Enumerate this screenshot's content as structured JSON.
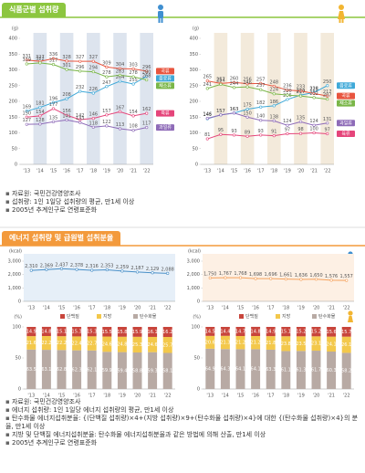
{
  "sections": [
    {
      "title": "식품군별 섭취량",
      "notes": [
        "자료원: 국민건강영양조사",
        "섭취량: 1인 1일당 섭취량의 평균, 만1세 이상",
        "2005년 추계인구로 연령표준화"
      ]
    },
    {
      "title": "에너지 섭취량 및 급원별 섭취분율",
      "notes": [
        "자료원: 국민건강영양조사",
        "에너지 섭취량: 1인 1일당 에너지 섭취량의 평균, 만1세 이상",
        "탄수화물 에너지섭취분율: {(단백질 섭취량)×4+(지방 섭취량)×9+(탄수화물 섭취량)×4}에 대한 {(탄수화물 섭취량)×4}의 분율, 만1세 이상",
        "지방 및 단백질 에너지섭취분율: 탄수화물 에너지섭취분율과 같은 방법에 의해 산출, 만1세 이상",
        "2005년 추계인구로 연령표준화"
      ]
    }
  ],
  "chart_data": [
    {
      "type": "line",
      "y_label": "(g)",
      "categories": [
        "'13",
        "'14",
        "'15",
        "'16",
        "'17",
        "'18",
        "'19",
        "'20",
        "'21",
        "'22"
      ],
      "ylim": [
        0,
        400
      ],
      "yticks": [
        0,
        50,
        100,
        150,
        200,
        250,
        300,
        350,
        400
      ],
      "series": [
        {
          "name": "곡류",
          "color": "#e8553f",
          "values": [
            331,
            327,
            336,
            328,
            327,
            327,
            309,
            304,
            303,
            296
          ]
        },
        {
          "name": "음료류",
          "color": "#3fa9d8",
          "values": [
            169,
            181,
            196,
            208,
            232,
            226,
            247,
            264,
            255,
            280
          ]
        },
        {
          "name": "채소류",
          "color": "#7ab648",
          "values": [
            319,
            322,
            317,
            301,
            296,
            294,
            278,
            283,
            278,
            268
          ]
        },
        {
          "name": "육류",
          "color": "#e5457a",
          "values": [
            150,
            154,
            177,
            156,
            142,
            146,
            157,
            167,
            154,
            162
          ]
        },
        {
          "name": "과일류",
          "color": "#8e6bb8",
          "values": [
            127,
            128,
            135,
            141,
            133,
            118,
            122,
            113,
            108,
            117
          ]
        }
      ]
    },
    {
      "type": "line",
      "y_label": "(g)",
      "categories": [
        "'13",
        "'14",
        "'15",
        "'16",
        "'17",
        "'18",
        "'19",
        "'20",
        "'21",
        "'22"
      ],
      "ylim": [
        0,
        400
      ],
      "yticks": [
        0,
        50,
        100,
        150,
        200,
        250,
        300,
        350,
        400
      ],
      "series": [
        {
          "name": "음료류",
          "color": "#3fa9d8",
          "values": [
            145,
            157,
            163,
            175,
            182,
            186,
            206,
            220,
            228,
            250
          ]
        },
        {
          "name": "곡류",
          "color": "#e8553f",
          "values": [
            265,
            257,
            260,
            256,
            257,
            248,
            236,
            233,
            225,
            217
          ]
        },
        {
          "name": "채소류",
          "color": "#7ab648",
          "values": [
            241,
            254,
            244,
            246,
            237,
            224,
            220,
            217,
            212,
            207
          ]
        },
        {
          "name": "과일류",
          "color": "#8e6bb8",
          "values": [
            146,
            157,
            163,
            150,
            140,
            138,
            124,
            135,
            124,
            131
          ]
        },
        {
          "name": "육류",
          "color": "#e5457a",
          "values": [
            81,
            95,
            93,
            89,
            93,
            91,
            97,
            98,
            100,
            97
          ]
        }
      ]
    },
    {
      "type": "line",
      "y_label": "(kcal)",
      "categories": [
        "'13",
        "'14",
        "'15",
        "'16",
        "'17",
        "'18",
        "'19",
        "'20",
        "'21",
        "'22"
      ],
      "ylim": [
        0,
        3000
      ],
      "yticks": [
        {
          "value": 0,
          "label": "0"
        },
        {
          "value": 1000,
          "label": "1,000"
        },
        {
          "value": 2000,
          "label": "2,000"
        },
        {
          "value": 3000,
          "label": "3,000"
        }
      ],
      "series": [
        {
          "color": "#4a90c8",
          "values": [
            2310,
            2369,
            2437,
            2378,
            2316,
            2353,
            2259,
            2187,
            2129,
            2088
          ],
          "value_labels": [
            "2,310",
            "2,369",
            "2,437",
            "2,378",
            "2,316",
            "2,353",
            "2,259",
            "2,187",
            "2,129",
            "2,088"
          ]
        }
      ]
    },
    {
      "type": "line",
      "y_label": "(kcal)",
      "categories": [
        "'13",
        "'14",
        "'15",
        "'16",
        "'17",
        "'18",
        "'19",
        "'20",
        "'21",
        "'22"
      ],
      "ylim": [
        0,
        3000
      ],
      "yticks": [
        {
          "value": 0,
          "label": "0"
        },
        {
          "value": 1000,
          "label": "1,000"
        },
        {
          "value": 2000,
          "label": "2,000"
        },
        {
          "value": 3000,
          "label": "3,000"
        }
      ],
      "series": [
        {
          "color": "#f5a25d",
          "values": [
            1750,
            1767,
            1768,
            1698,
            1696,
            1661,
            1636,
            1650,
            1576,
            1557
          ],
          "value_labels": [
            "1,750",
            "1,767",
            "1,768",
            "1,698",
            "1,696",
            "1,661",
            "1,636",
            "1,650",
            "1,576",
            "1,557"
          ]
        }
      ]
    },
    {
      "type": "stacked_bar",
      "y_label": "(%)",
      "categories": [
        "'13",
        "'14",
        "'15",
        "'16",
        "'17",
        "'18",
        "'19",
        "'20",
        "'21",
        "'22"
      ],
      "ylim": [
        0,
        100
      ],
      "yticks": [
        0,
        50,
        100
      ],
      "series": [
        {
          "name": "단백질",
          "color": "#c8453c",
          "values": [
            14.9,
            14.8,
            15.1,
            15.3,
            15.3,
            15.5,
            15.8,
            15.9,
            16.1,
            16.2
          ]
        },
        {
          "name": "지방",
          "color": "#f3c84b",
          "values": [
            21.6,
            22.2,
            22.2,
            22.4,
            22.7,
            24.6,
            24.8,
            25.3,
            24.6,
            25.7
          ]
        },
        {
          "name": "탄수화물",
          "color": "#b8aaa4",
          "values": [
            63.5,
            63.1,
            62.8,
            62.3,
            62.1,
            59.9,
            59.4,
            58.8,
            59.3,
            58.1
          ]
        }
      ]
    },
    {
      "type": "stacked_bar",
      "y_label": "(%)",
      "categories": [
        "'13",
        "'14",
        "'15",
        "'16",
        "'17",
        "'18",
        "'19",
        "'20",
        "'21",
        "'22"
      ],
      "ylim": [
        0,
        100
      ],
      "yticks": [
        0,
        50,
        100
      ],
      "series": [
        {
          "name": "단백질",
          "color": "#c8453c",
          "values": [
            14.5,
            14.4,
            14.7,
            14.8,
            14.9,
            15.1,
            15.2,
            15.2,
            15.6,
            15.7
          ]
        },
        {
          "name": "지방",
          "color": "#f3c84b",
          "values": [
            20.6,
            21.3,
            21.2,
            21.2,
            21.8,
            23.8,
            23.5,
            23.1,
            24.1,
            26.1
          ]
        },
        {
          "name": "탄수화물",
          "color": "#b8aaa4",
          "values": [
            64.9,
            64.3,
            64.1,
            64.1,
            63.3,
            61.1,
            61.3,
            61.7,
            60.3,
            58.2
          ]
        }
      ]
    }
  ]
}
